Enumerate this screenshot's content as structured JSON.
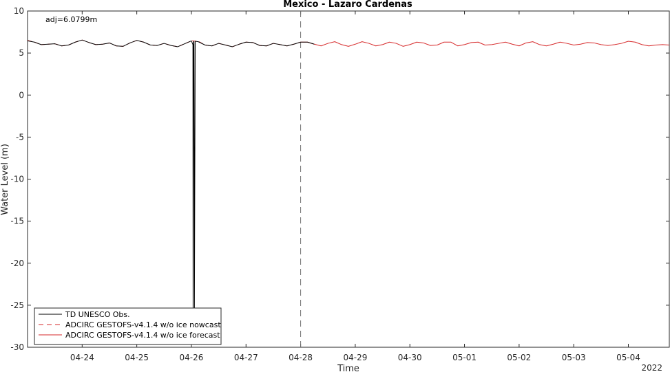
{
  "chart_data": {
    "type": "line",
    "title": "Mexico - Lazaro Cardenas",
    "xlabel": "Time",
    "ylabel": "Water Level (m)",
    "year_label": "2022",
    "annotation": "adj=6.0799m",
    "xlim": [
      "2022-04-23T00:00",
      "2022-05-04T18:00"
    ],
    "ylim": [
      -30,
      10
    ],
    "yticks": [
      10,
      5,
      0,
      -5,
      -10,
      -15,
      -20,
      -25,
      -30
    ],
    "xticks": [
      "04-24",
      "04-25",
      "04-26",
      "04-27",
      "04-28",
      "04-29",
      "04-30",
      "05-01",
      "05-02",
      "05-03",
      "05-04"
    ],
    "nowcast_forecast_divider": "2022-04-28T00:00",
    "grid": false,
    "legend_location": "bottom-left",
    "series": [
      {
        "name": "TD UNESCO Obs.",
        "color": "#000000",
        "style": "solid",
        "x": [
          "2022-04-23T00:00",
          "2022-04-23T03:00",
          "2022-04-23T06:00",
          "2022-04-23T09:00",
          "2022-04-23T12:00",
          "2022-04-23T15:00",
          "2022-04-23T18:00",
          "2022-04-23T21:00",
          "2022-04-24T00:00",
          "2022-04-24T03:00",
          "2022-04-24T06:00",
          "2022-04-24T09:00",
          "2022-04-24T12:00",
          "2022-04-24T15:00",
          "2022-04-24T18:00",
          "2022-04-24T21:00",
          "2022-04-25T00:00",
          "2022-04-25T03:00",
          "2022-04-25T06:00",
          "2022-04-25T09:00",
          "2022-04-25T12:00",
          "2022-04-25T15:00",
          "2022-04-25T18:00",
          "2022-04-25T21:00",
          "2022-04-26T00:00",
          "2022-04-26T00:40",
          "2022-04-26T00:45",
          "2022-04-26T00:55",
          "2022-04-26T01:00",
          "2022-04-26T01:10",
          "2022-04-26T01:20",
          "2022-04-26T01:40",
          "2022-04-26T01:45",
          "2022-04-26T03:00",
          "2022-04-26T06:00",
          "2022-04-26T09:00",
          "2022-04-26T12:00",
          "2022-04-26T15:00",
          "2022-04-26T18:00",
          "2022-04-26T21:00",
          "2022-04-27T00:00",
          "2022-04-27T03:00",
          "2022-04-27T06:00",
          "2022-04-27T09:00",
          "2022-04-27T12:00",
          "2022-04-27T15:00",
          "2022-04-27T18:00",
          "2022-04-27T21:00",
          "2022-04-28T00:00",
          "2022-04-28T03:00",
          "2022-04-28T06:00"
        ],
        "y": [
          6.45,
          6.3,
          6.0,
          6.05,
          6.1,
          5.85,
          5.95,
          6.3,
          6.55,
          6.25,
          6.0,
          6.05,
          6.2,
          5.85,
          5.8,
          6.2,
          6.5,
          6.3,
          5.95,
          5.9,
          6.15,
          5.9,
          5.75,
          6.1,
          6.45,
          6.0,
          -29.0,
          6.3,
          6.4,
          6.35,
          -25.5,
          6.3,
          6.4,
          6.35,
          5.95,
          5.85,
          6.15,
          5.95,
          5.75,
          6.05,
          6.3,
          6.25,
          5.9,
          5.85,
          6.15,
          6.0,
          5.85,
          6.05,
          6.3,
          6.3,
          6.05
        ]
      },
      {
        "name": "ADCIRC GESTOFS-v4.1.4 w/o ice nowcast",
        "color": "#d62728",
        "style": "dashed",
        "x": [
          "2022-04-23T00:00",
          "2022-04-23T03:00",
          "2022-04-23T06:00",
          "2022-04-23T09:00",
          "2022-04-23T12:00",
          "2022-04-23T15:00",
          "2022-04-23T18:00",
          "2022-04-23T21:00",
          "2022-04-24T00:00",
          "2022-04-24T03:00",
          "2022-04-24T06:00",
          "2022-04-24T09:00",
          "2022-04-24T12:00",
          "2022-04-24T15:00",
          "2022-04-24T18:00",
          "2022-04-24T21:00",
          "2022-04-25T00:00",
          "2022-04-25T03:00",
          "2022-04-25T06:00",
          "2022-04-25T09:00",
          "2022-04-25T12:00",
          "2022-04-25T15:00",
          "2022-04-25T18:00",
          "2022-04-25T21:00",
          "2022-04-26T00:00",
          "2022-04-26T03:00",
          "2022-04-26T06:00",
          "2022-04-26T09:00",
          "2022-04-26T12:00",
          "2022-04-26T15:00",
          "2022-04-26T18:00",
          "2022-04-26T21:00",
          "2022-04-27T00:00",
          "2022-04-27T03:00",
          "2022-04-27T06:00",
          "2022-04-27T09:00",
          "2022-04-27T12:00",
          "2022-04-27T15:00",
          "2022-04-27T18:00",
          "2022-04-27T21:00",
          "2022-04-28T00:00"
        ],
        "y": [
          6.5,
          6.3,
          6.0,
          6.05,
          6.1,
          5.85,
          5.95,
          6.3,
          6.55,
          6.25,
          6.0,
          6.05,
          6.2,
          5.85,
          5.8,
          6.2,
          6.5,
          6.3,
          5.95,
          5.9,
          6.15,
          5.9,
          5.75,
          6.1,
          6.45,
          6.4,
          5.95,
          5.85,
          6.15,
          5.95,
          5.75,
          6.05,
          6.3,
          6.25,
          5.9,
          5.85,
          6.15,
          6.0,
          5.85,
          6.05,
          6.3
        ]
      },
      {
        "name": "ADCIRC GESTOFS-v4.1.4 w/o ice forecast",
        "color": "#d62728",
        "style": "solid",
        "x": [
          "2022-04-28T00:00",
          "2022-04-28T03:00",
          "2022-04-28T06:00",
          "2022-04-28T09:00",
          "2022-04-28T12:00",
          "2022-04-28T15:00",
          "2022-04-28T18:00",
          "2022-04-28T21:00",
          "2022-04-29T00:00",
          "2022-04-29T03:00",
          "2022-04-29T06:00",
          "2022-04-29T09:00",
          "2022-04-29T12:00",
          "2022-04-29T15:00",
          "2022-04-29T18:00",
          "2022-04-29T21:00",
          "2022-04-30T00:00",
          "2022-04-30T03:00",
          "2022-04-30T06:00",
          "2022-04-30T09:00",
          "2022-04-30T12:00",
          "2022-04-30T15:00",
          "2022-04-30T18:00",
          "2022-04-30T21:00",
          "2022-05-01T00:00",
          "2022-05-01T03:00",
          "2022-05-01T06:00",
          "2022-05-01T09:00",
          "2022-05-01T12:00",
          "2022-05-01T15:00",
          "2022-05-01T18:00",
          "2022-05-01T21:00",
          "2022-05-02T00:00",
          "2022-05-02T03:00",
          "2022-05-02T06:00",
          "2022-05-02T09:00",
          "2022-05-02T12:00",
          "2022-05-02T15:00",
          "2022-05-02T18:00",
          "2022-05-02T21:00",
          "2022-05-03T00:00",
          "2022-05-03T03:00",
          "2022-05-03T06:00",
          "2022-05-03T09:00",
          "2022-05-03T12:00",
          "2022-05-03T15:00",
          "2022-05-03T18:00",
          "2022-05-03T21:00",
          "2022-05-04T00:00",
          "2022-05-04T03:00",
          "2022-05-04T06:00",
          "2022-05-04T09:00",
          "2022-05-04T12:00",
          "2022-05-04T15:00",
          "2022-05-04T18:00"
        ],
        "y": [
          6.3,
          6.3,
          6.05,
          5.85,
          6.15,
          6.35,
          6.0,
          5.8,
          6.05,
          6.35,
          6.15,
          5.85,
          6.0,
          6.3,
          6.15,
          5.8,
          6.0,
          6.3,
          6.2,
          5.9,
          5.95,
          6.3,
          6.3,
          5.85,
          6.0,
          6.25,
          6.3,
          5.95,
          6.0,
          6.15,
          6.3,
          6.05,
          5.85,
          6.2,
          6.35,
          6.0,
          5.85,
          6.05,
          6.3,
          6.15,
          5.95,
          6.05,
          6.25,
          6.2,
          6.0,
          5.9,
          6.0,
          6.15,
          6.4,
          6.3,
          6.0,
          5.85,
          5.95,
          6.0,
          5.95
        ]
      }
    ]
  }
}
